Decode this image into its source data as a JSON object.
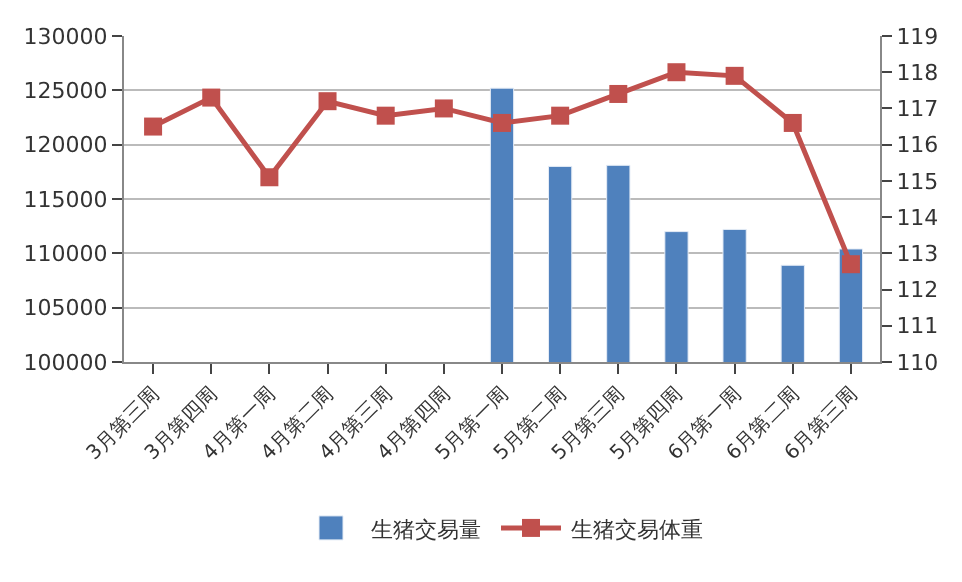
{
  "chart_data": {
    "type": "bar",
    "categories": [
      "3月第三周",
      "3月第四周",
      "4月第一周",
      "4月第二周",
      "4月第三周",
      "4月第四周",
      "5月第一周",
      "5月第二周",
      "5月第三周",
      "5月第四周",
      "6月第一周",
      "6月第二周",
      "6月第三周"
    ],
    "series": [
      {
        "name": "生猪交易量",
        "color": "#4f81bd",
        "values": [
          null,
          null,
          null,
          null,
          null,
          null,
          125200,
          118000,
          118100,
          112000,
          112200,
          108900,
          110400
        ]
      },
      {
        "name": "生猪交易体重",
        "type": "line",
        "axis": "y2",
        "color": "#c0504d",
        "marker": "square",
        "values": [
          116.5,
          117.3,
          115.1,
          117.2,
          116.8,
          117.0,
          116.6,
          116.8,
          117.4,
          118.0,
          117.9,
          116.6,
          112.7
        ]
      }
    ],
    "ylim": [
      100000,
      130000
    ],
    "yticks": [
      100000,
      105000,
      110000,
      115000,
      120000,
      125000,
      130000
    ],
    "y2lim": [
      110,
      119
    ],
    "y2ticks": [
      110,
      111,
      112,
      113,
      114,
      115,
      116,
      117,
      118,
      119
    ],
    "grid": "y",
    "legend": "bottom"
  }
}
